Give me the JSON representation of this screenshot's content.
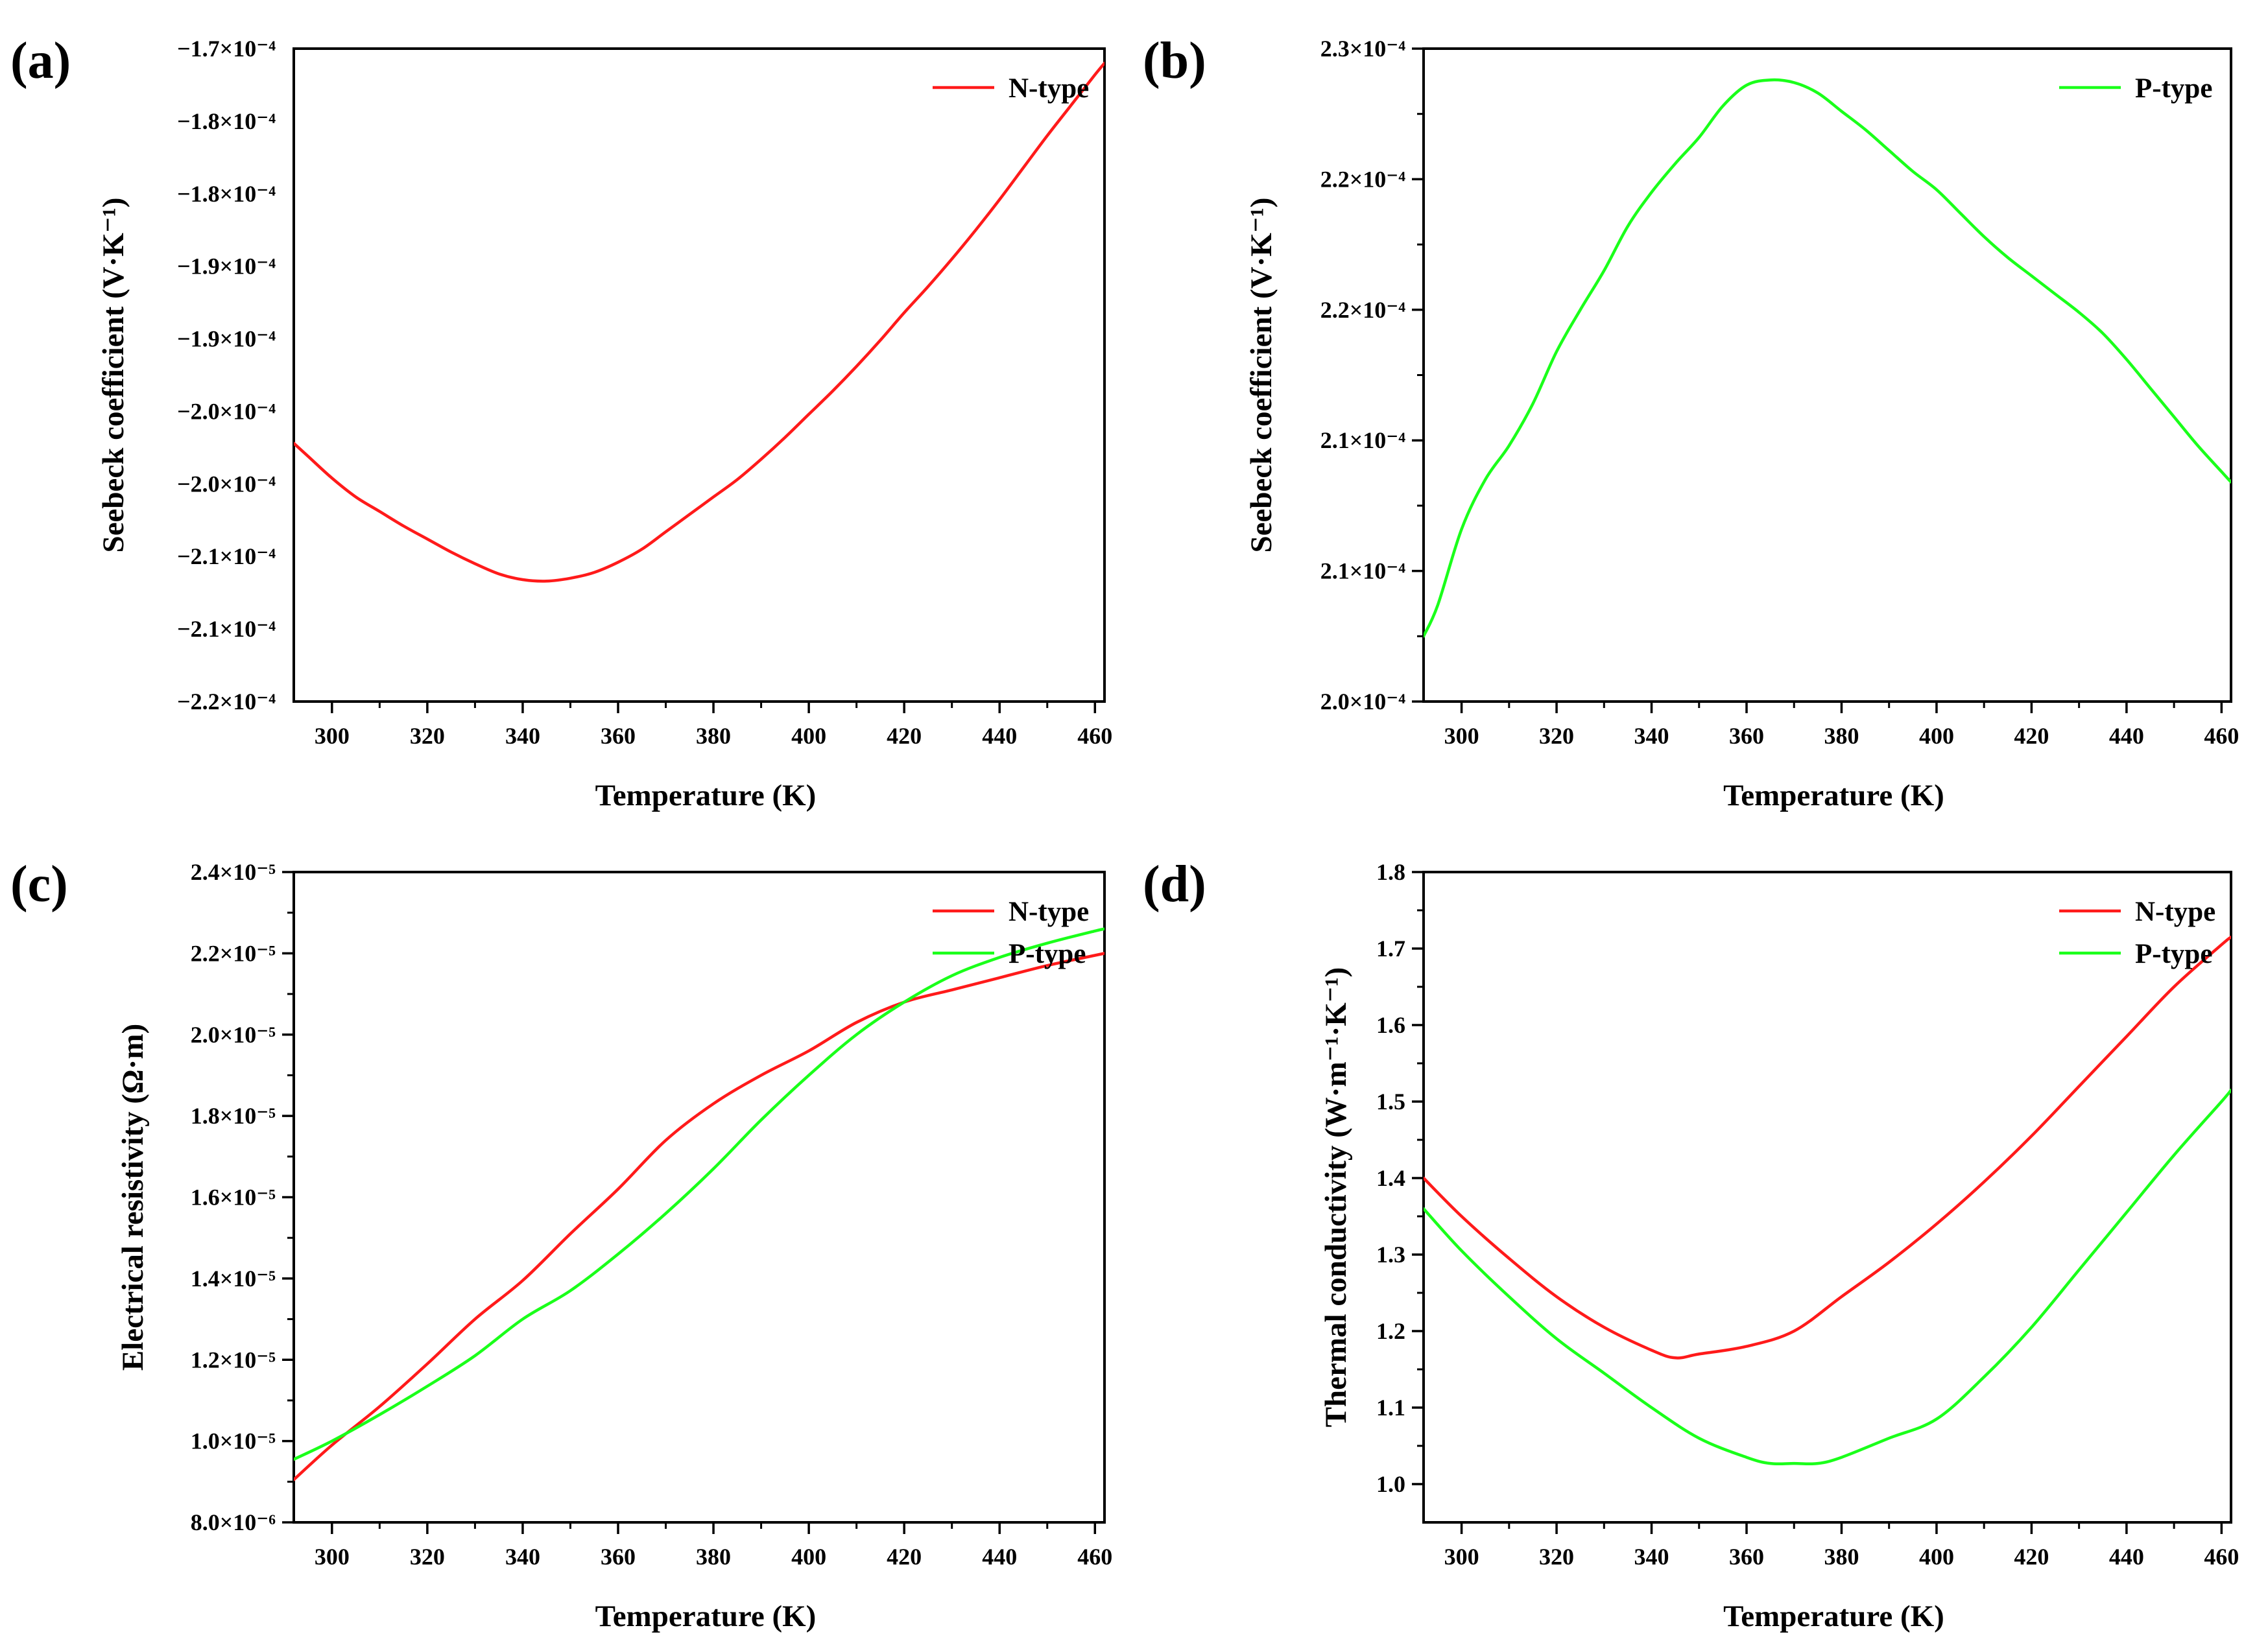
{
  "figure": {
    "x_axis_label": "Temperature (K)"
  },
  "colors": {
    "N-type": "#ff1a1a",
    "P-type": "#1aff1a"
  },
  "chart_data": [
    {
      "panel": "(a)",
      "type": "line",
      "xlabel": "Temperature (K)",
      "ylabel": "Seebeck coefficient (V·K⁻¹)",
      "xlim": [
        292,
        462
      ],
      "xticks": [
        300,
        320,
        340,
        360,
        380,
        400,
        420,
        440,
        460
      ],
      "yticks": [
        {
          "label": "−1.7×10⁻⁴",
          "value": -0.00017
        },
        {
          "label": "−1.8×10⁻⁴",
          "value": -0.000175
        },
        {
          "label": "−1.8×10⁻⁴",
          "value": -0.00018
        },
        {
          "label": "−1.9×10⁻⁴",
          "value": -0.000185
        },
        {
          "label": "−1.9×10⁻⁴",
          "value": -0.00019
        },
        {
          "label": "−2.0×10⁻⁴",
          "value": -0.000195
        },
        {
          "label": "−2.0×10⁻⁴",
          "value": -0.0002
        },
        {
          "label": "−2.1×10⁻⁴",
          "value": -0.000205
        },
        {
          "label": "−2.1×10⁻⁴",
          "value": -0.00021
        },
        {
          "label": "−2.2×10⁻⁴",
          "value": -0.000215
        }
      ],
      "ylim": [
        -0.000215,
        -0.00017
      ],
      "legend": {
        "position": "top-right",
        "entries": [
          "N-type"
        ]
      },
      "series": [
        {
          "name": "N-type",
          "x": [
            292,
            295,
            300,
            305,
            310,
            315,
            320,
            325,
            330,
            335,
            340,
            345,
            350,
            355,
            360,
            365,
            370,
            375,
            380,
            385,
            390,
            395,
            400,
            405,
            410,
            415,
            420,
            425,
            430,
            435,
            440,
            445,
            450,
            455,
            460,
            462
          ],
          "values": [
            -0.0001972,
            -0.0001981,
            -0.0001996,
            -0.0002009,
            -0.0002019,
            -0.0002029,
            -0.0002038,
            -0.0002047,
            -0.0002055,
            -0.0002062,
            -0.0002066,
            -0.0002067,
            -0.0002065,
            -0.0002061,
            -0.0002054,
            -0.0002045,
            -0.0002033,
            -0.0002021,
            -0.0002009,
            -0.0001997,
            -0.0001983,
            -0.0001968,
            -0.0001952,
            -0.0001936,
            -0.0001919,
            -0.0001901,
            -0.0001882,
            -0.0001864,
            -0.0001845,
            -0.0001825,
            -0.0001804,
            -0.0001782,
            -0.000176,
            -0.0001739,
            -0.0001718,
            -0.000171
          ]
        }
      ]
    },
    {
      "panel": "(b)",
      "type": "line",
      "xlabel": "Temperature (K)",
      "ylabel": "Seebeck coefficient (V·K⁻¹)",
      "xlim": [
        292,
        462
      ],
      "xticks": [
        300,
        320,
        340,
        360,
        380,
        400,
        420,
        440,
        460
      ],
      "yticks": [
        {
          "label": "2.0×10⁻⁴",
          "value": 0.0002
        },
        {
          "label": "2.1×10⁻⁴",
          "value": 0.000205
        },
        {
          "label": "2.1×10⁻⁴",
          "value": 0.00021
        },
        {
          "label": "2.2×10⁻⁴",
          "value": 0.000215
        },
        {
          "label": "2.2×10⁻⁴",
          "value": 0.00022
        },
        {
          "label": "2.3×10⁻⁴",
          "value": 0.000225
        }
      ],
      "ylim": [
        0.0002,
        0.000225
      ],
      "legend": {
        "position": "top-right",
        "entries": [
          "P-type"
        ]
      },
      "series": [
        {
          "name": "P-type",
          "x": [
            292,
            295,
            300,
            305,
            310,
            315,
            320,
            325,
            330,
            335,
            340,
            345,
            350,
            355,
            360,
            365,
            370,
            375,
            380,
            385,
            390,
            395,
            400,
            405,
            410,
            415,
            420,
            425,
            430,
            435,
            440,
            445,
            450,
            455,
            460,
            462
          ],
          "values": [
            0.0002025,
            0.0002037,
            0.0002066,
            0.0002085,
            0.0002098,
            0.0002114,
            0.0002134,
            0.000215,
            0.0002165,
            0.0002182,
            0.0002195,
            0.0002206,
            0.0002216,
            0.0002228,
            0.0002236,
            0.0002238,
            0.0002237,
            0.0002233,
            0.0002226,
            0.0002219,
            0.0002211,
            0.0002203,
            0.0002196,
            0.0002187,
            0.0002178,
            0.000217,
            0.0002163,
            0.0002156,
            0.0002149,
            0.0002141,
            0.0002131,
            0.000212,
            0.0002109,
            0.0002098,
            0.0002088,
            0.0002084
          ]
        }
      ]
    },
    {
      "panel": "(c)",
      "type": "line",
      "xlabel": "Temperature (K)",
      "ylabel": "Electrical resistivity (Ω·m)",
      "xlim": [
        292,
        462
      ],
      "xticks": [
        300,
        320,
        340,
        360,
        380,
        400,
        420,
        440,
        460
      ],
      "yticks": [
        {
          "label": "8.0×10⁻⁶",
          "value": 8e-06
        },
        {
          "label": "1.0×10⁻⁵",
          "value": 1e-05
        },
        {
          "label": "1.2×10⁻⁵",
          "value": 1.2e-05
        },
        {
          "label": "1.4×10⁻⁵",
          "value": 1.4e-05
        },
        {
          "label": "1.6×10⁻⁵",
          "value": 1.6e-05
        },
        {
          "label": "1.8×10⁻⁵",
          "value": 1.8e-05
        },
        {
          "label": "2.0×10⁻⁵",
          "value": 2e-05
        },
        {
          "label": "2.2×10⁻⁵",
          "value": 2.2e-05
        },
        {
          "label": "2.4×10⁻⁵",
          "value": 2.4e-05
        }
      ],
      "ylim": [
        8e-06,
        2.4e-05
      ],
      "legend": {
        "position": "top-right",
        "entries": [
          "N-type",
          "P-type"
        ]
      },
      "series": [
        {
          "name": "N-type",
          "x": [
            292,
            300,
            310,
            320,
            330,
            340,
            350,
            360,
            370,
            380,
            390,
            400,
            410,
            420,
            430,
            440,
            450,
            460,
            462
          ],
          "values": [
            9.05e-06,
            9.9e-06,
            1.085e-05,
            1.19e-05,
            1.3e-05,
            1.395e-05,
            1.51e-05,
            1.62e-05,
            1.74e-05,
            1.83e-05,
            1.9e-05,
            1.96e-05,
            2.03e-05,
            2.08e-05,
            2.11e-05,
            2.14e-05,
            2.17e-05,
            2.195e-05,
            2.2e-05
          ]
        },
        {
          "name": "P-type",
          "x": [
            292,
            300,
            310,
            320,
            330,
            340,
            350,
            360,
            370,
            380,
            390,
            400,
            410,
            420,
            430,
            440,
            450,
            460,
            462
          ],
          "values": [
            9.55e-06,
            1e-05,
            1.065e-05,
            1.135e-05,
            1.21e-05,
            1.3e-05,
            1.37e-05,
            1.46e-05,
            1.56e-05,
            1.67e-05,
            1.79e-05,
            1.9e-05,
            2e-05,
            2.08e-05,
            2.145e-05,
            2.19e-05,
            2.225e-05,
            2.255e-05,
            2.26e-05
          ]
        }
      ]
    },
    {
      "panel": "(d)",
      "type": "line",
      "xlabel": "Temperature (K)",
      "ylabel": "Thermal conductivity (W·m⁻¹·K⁻¹)",
      "xlim": [
        292,
        462
      ],
      "xticks": [
        300,
        320,
        340,
        360,
        380,
        400,
        420,
        440,
        460
      ],
      "yticks": [
        {
          "label": "1.0",
          "value": 1.0
        },
        {
          "label": "1.1",
          "value": 1.1
        },
        {
          "label": "1.2",
          "value": 1.2
        },
        {
          "label": "1.3",
          "value": 1.3
        },
        {
          "label": "1.4",
          "value": 1.4
        },
        {
          "label": "1.5",
          "value": 1.5
        },
        {
          "label": "1.6",
          "value": 1.6
        },
        {
          "label": "1.7",
          "value": 1.7
        },
        {
          "label": "1.8",
          "value": 1.8
        }
      ],
      "ylim": [
        0.95,
        1.8
      ],
      "legend": {
        "position": "top-right",
        "entries": [
          "N-type",
          "P-type"
        ]
      },
      "series": [
        {
          "name": "N-type",
          "x": [
            292,
            300,
            310,
            320,
            330,
            340,
            345,
            350,
            360,
            370,
            380,
            390,
            400,
            410,
            420,
            430,
            440,
            450,
            460,
            462
          ],
          "values": [
            1.4,
            1.35,
            1.295,
            1.245,
            1.205,
            1.175,
            1.165,
            1.17,
            1.18,
            1.2,
            1.245,
            1.29,
            1.34,
            1.395,
            1.455,
            1.52,
            1.585,
            1.65,
            1.705,
            1.715
          ]
        },
        {
          "name": "P-type",
          "x": [
            292,
            300,
            310,
            320,
            330,
            340,
            350,
            360,
            365,
            370,
            375,
            380,
            390,
            400,
            410,
            420,
            430,
            440,
            450,
            460,
            462
          ],
          "values": [
            1.36,
            1.305,
            1.245,
            1.19,
            1.145,
            1.1,
            1.06,
            1.035,
            1.027,
            1.027,
            1.027,
            1.035,
            1.06,
            1.085,
            1.14,
            1.205,
            1.28,
            1.355,
            1.43,
            1.5,
            1.515
          ]
        }
      ]
    }
  ]
}
